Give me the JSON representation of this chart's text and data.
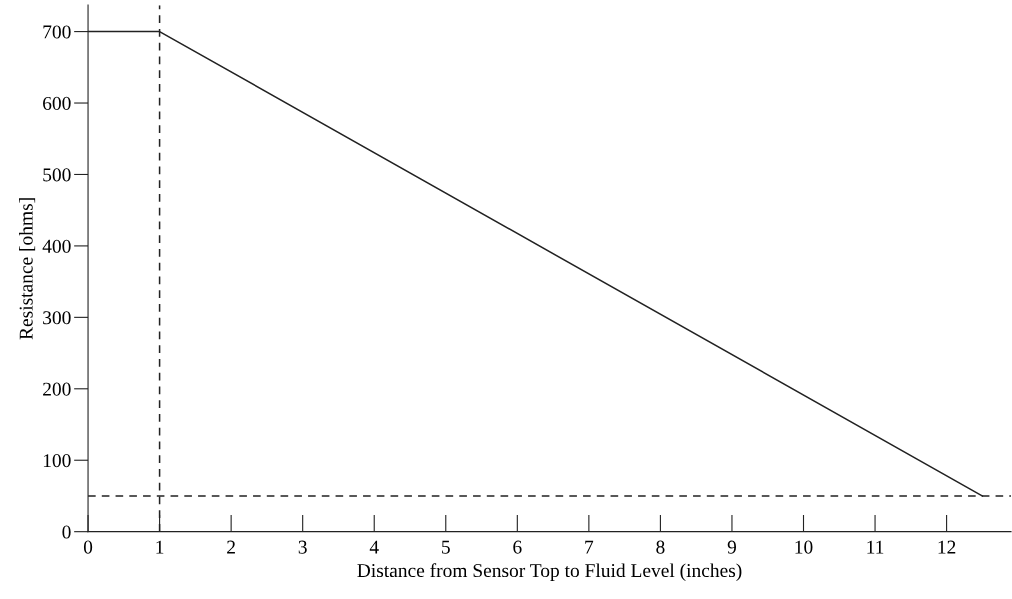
{
  "chart_data": {
    "type": "line",
    "xlabel": "Distance from Sensor Top to Fluid Level (inches)",
    "ylabel": "Resistance [ohms]",
    "series": [
      {
        "color": "#222222",
        "x": [
          0,
          1,
          12.5
        ],
        "values": [
          700,
          700,
          50
        ],
        "line_style": "solid"
      }
    ],
    "ref_lines": [
      {
        "axis": "x",
        "value": 1,
        "color": "#222222",
        "line_style": "dashed"
      },
      {
        "axis": "y",
        "value": 50,
        "color": "#222222",
        "line_style": "dashed"
      }
    ],
    "xlim": [
      0,
      12.9
    ],
    "ylim": [
      0,
      737
    ],
    "xticks": [
      0,
      1,
      2,
      3,
      4,
      5,
      6,
      7,
      8,
      9,
      10,
      11,
      12
    ],
    "yticks": [
      0,
      100,
      200,
      300,
      400,
      500,
      600,
      700
    ],
    "grid": false,
    "marker": "none"
  }
}
